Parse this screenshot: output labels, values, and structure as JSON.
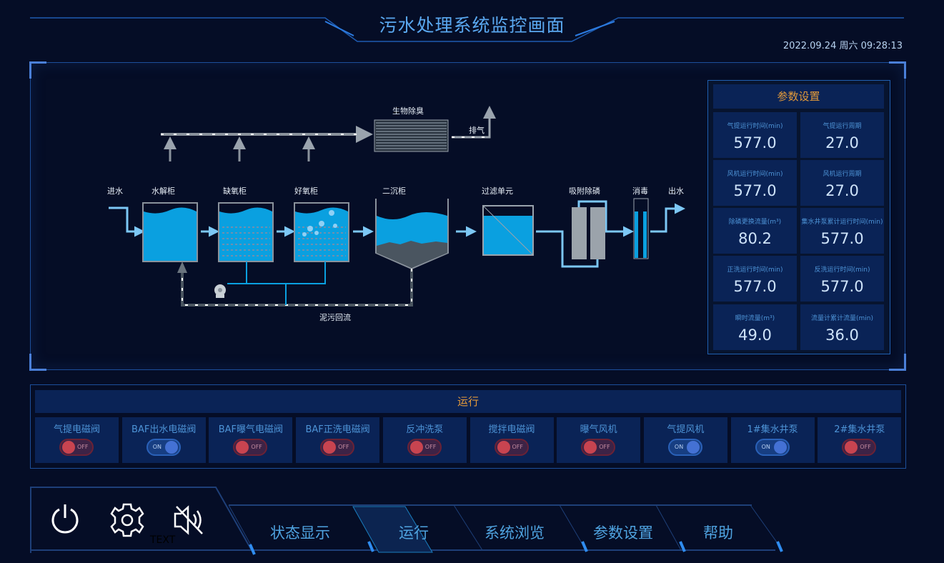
{
  "header": {
    "title": "污水处理系统监控画面",
    "datetime": "2022.09.24 周六 09:28:13"
  },
  "process": {
    "bio_deodor": "生物除臭",
    "exhaust": "排气",
    "inlet": "进水",
    "hydrolysis": "水解柜",
    "anoxic": "缺氧柜",
    "aerobic": "好氧柜",
    "secondary": "二沉柜",
    "filter": "过滤单元",
    "adsorption": "吸附除磷",
    "disinfect": "消毒",
    "outlet": "出水",
    "sludge_return": "泥污回流"
  },
  "params": {
    "title": "参数设置",
    "items": [
      {
        "label": "气提运行时间(min)",
        "value": "577.0"
      },
      {
        "label": "气提运行周期",
        "value": "27.0"
      },
      {
        "label": "风机运行时间(min)",
        "value": "577.0"
      },
      {
        "label": "风机运行周期",
        "value": "27.0"
      },
      {
        "label": "除磷更换流量(m³)",
        "value": "80.2"
      },
      {
        "label": "集水井泵累计运行时间(min)",
        "value": "577.0"
      },
      {
        "label": "正洗运行时间(min)",
        "value": "577.0"
      },
      {
        "label": "反洗运行时间(min)",
        "value": "577.0"
      },
      {
        "label": "瞬时流量(m³)",
        "value": "49.0"
      },
      {
        "label": "流量计累计流量(min)",
        "value": "36.0"
      }
    ]
  },
  "run": {
    "title": "运行",
    "devices": [
      {
        "label": "气提电磁阀",
        "state": "OFF"
      },
      {
        "label": "BAF出水电磁阀",
        "state": "ON"
      },
      {
        "label": "BAF曝气电磁阀",
        "state": "OFF"
      },
      {
        "label": "BAF正洗电磁阀",
        "state": "OFF"
      },
      {
        "label": "反冲洗泵",
        "state": "OFF"
      },
      {
        "label": "搅拌电磁阀",
        "state": "OFF"
      },
      {
        "label": "曝气风机",
        "state": "OFF"
      },
      {
        "label": "气提风机",
        "state": "ON"
      },
      {
        "label": "1#集水井泵",
        "state": "ON"
      },
      {
        "label": "2#集水井泵",
        "state": "OFF"
      }
    ]
  },
  "controls": {
    "text_label": "TEXT",
    "icons": [
      "power-icon",
      "gear-icon",
      "mute-icon"
    ]
  },
  "nav": {
    "tabs": [
      "状态显示",
      "运行",
      "系统浏览",
      "参数设置",
      "帮助"
    ],
    "active": "运行"
  },
  "colors": {
    "accent": "#4fa3e0",
    "heading": "#e39a3a",
    "water": "#0aa0e0",
    "off": "#c84450",
    "on": "#4471d4"
  }
}
